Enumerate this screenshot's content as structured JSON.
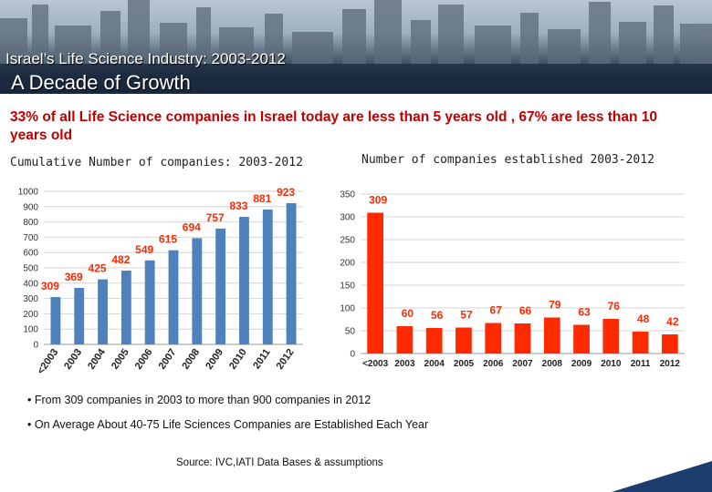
{
  "header": {
    "title_line1": "Israel’s Life Science Industry: 2003-2012",
    "title_line2": "A Decade of Growth"
  },
  "headline": "33% of all Life Science companies in Israel today are less than 5 years old , 67% are less than 10 years old",
  "colors": {
    "chart1_bar": "#4f81bd",
    "chart2_bar": "#ff2a00",
    "chart2_label": "#ff2a00",
    "headline": "#c00000"
  },
  "bullets": [
    "From 309 companies in 2003 to more than 900 companies in 2012",
    "On Average About 40-75 Life Sciences Companies are Established Each Year"
  ],
  "source": "Source: IVC,IATI Data Bases & assumptions",
  "chart_data": [
    {
      "type": "bar",
      "title": "Cumulative Number of companies: 2003-2012",
      "categories": [
        "<2003",
        "2003",
        "2004",
        "2005",
        "2006",
        "2007",
        "2008",
        "2009",
        "2010",
        "2011",
        "2012"
      ],
      "values": [
        309,
        369,
        425,
        482,
        549,
        615,
        694,
        757,
        833,
        881,
        923
      ],
      "ylim": [
        0,
        1000
      ],
      "yticks": [
        0,
        100,
        200,
        300,
        400,
        500,
        600,
        700,
        800,
        900,
        1000
      ],
      "grid": true,
      "xlabel": "",
      "ylabel": ""
    },
    {
      "type": "bar",
      "title": "Number of companies established 2003-2012",
      "categories": [
        "<2003",
        "2003",
        "2004",
        "2005",
        "2006",
        "2007",
        "2008",
        "2009",
        "2010",
        "2011",
        "2012"
      ],
      "values": [
        309,
        60,
        56,
        57,
        67,
        66,
        79,
        63,
        76,
        48,
        42
      ],
      "ylim": [
        0,
        350
      ],
      "yticks": [
        0,
        50,
        100,
        150,
        200,
        250,
        300,
        350
      ],
      "grid": true,
      "xlabel": "",
      "ylabel": ""
    }
  ]
}
